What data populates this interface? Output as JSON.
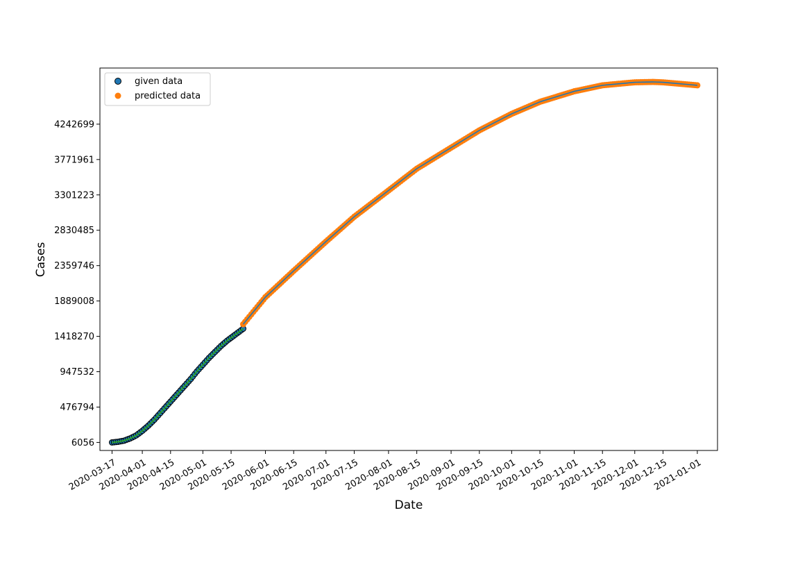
{
  "chart_data": {
    "type": "scatter",
    "xlabel": "Date",
    "ylabel": "Cases",
    "x_axis_type": "date",
    "xlim": [
      "2020-03-11",
      "2021-01-11"
    ],
    "ylim": [
      -101000,
      4990000
    ],
    "x_tick_labels": [
      "2020-03-17",
      "2020-04-01",
      "2020-04-15",
      "2020-05-01",
      "2020-05-15",
      "2020-06-01",
      "2020-06-15",
      "2020-07-01",
      "2020-07-15",
      "2020-08-01",
      "2020-08-15",
      "2020-09-01",
      "2020-09-15",
      "2020-10-01",
      "2020-10-15",
      "2020-11-01",
      "2020-11-15",
      "2020-12-01",
      "2020-12-15",
      "2021-01-01"
    ],
    "y_tick_labels": [
      "6056",
      "476794",
      "947532",
      "1418270",
      "1889008",
      "2359746",
      "2830485",
      "3301223",
      "3771961",
      "4242699"
    ],
    "y_tick_values": [
      6056,
      476794,
      947532,
      1418270,
      1889008,
      2359746,
      2830485,
      3301223,
      3771961,
      4242699
    ],
    "legend_position": "upper-left",
    "grid": false,
    "series": [
      {
        "name": "given data",
        "marker_color": "#1f77b4",
        "edge_color": "#000000",
        "line_color": "#2ca02c",
        "x": [
          "2020-03-17",
          "2020-03-20",
          "2020-03-23",
          "2020-03-26",
          "2020-03-29",
          "2020-04-01",
          "2020-04-04",
          "2020-04-07",
          "2020-04-10",
          "2020-04-13",
          "2020-04-16",
          "2020-04-19",
          "2020-04-22",
          "2020-04-25",
          "2020-04-28",
          "2020-05-01",
          "2020-05-04",
          "2020-05-07",
          "2020-05-10",
          "2020-05-13",
          "2020-05-16",
          "2020-05-19",
          "2020-05-21"
        ],
        "y": [
          6056,
          15000,
          30000,
          60000,
          100000,
          160000,
          230000,
          310000,
          400000,
          490000,
          580000,
          670000,
          760000,
          850000,
          950000,
          1040000,
          1130000,
          1210000,
          1290000,
          1360000,
          1420000,
          1480000,
          1520000
        ]
      },
      {
        "name": "predicted data",
        "marker_color": "#ff7f0e",
        "line_color": "#1f77b4",
        "x": [
          "2020-05-21",
          "2020-06-01",
          "2020-06-15",
          "2020-07-01",
          "2020-07-15",
          "2020-08-01",
          "2020-08-15",
          "2020-09-01",
          "2020-09-15",
          "2020-10-01",
          "2020-10-15",
          "2020-11-01",
          "2020-11-15",
          "2020-12-01",
          "2020-12-10",
          "2020-12-15",
          "2021-01-01"
        ],
        "y": [
          1580000,
          1940000,
          2290000,
          2680000,
          3010000,
          3360000,
          3650000,
          3930000,
          4160000,
          4380000,
          4540000,
          4680000,
          4760000,
          4800000,
          4805000,
          4800000,
          4760000
        ]
      }
    ]
  }
}
